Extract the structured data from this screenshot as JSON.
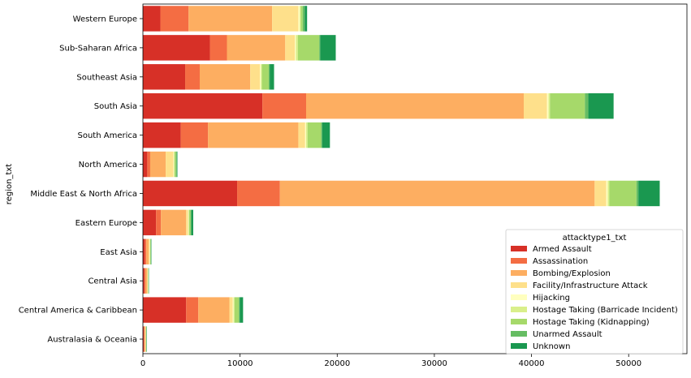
{
  "chart_data": {
    "type": "bar",
    "orientation": "horizontal",
    "stacked": true,
    "ylabel": "region_txt",
    "xlabel": "",
    "xlim": [
      0,
      56000
    ],
    "xticks": [
      0,
      10000,
      20000,
      30000,
      40000,
      50000
    ],
    "xtick_labels": [
      "0",
      "10000",
      "20000",
      "30000",
      "40000",
      "50000"
    ],
    "grid": false,
    "legend": {
      "title": "attacktype1_txt",
      "placement": "lower-right"
    },
    "categories": [
      "Western Europe",
      "Sub-Saharan Africa",
      "Southeast Asia",
      "South Asia",
      "South America",
      "North America",
      "Middle East & North Africa",
      "Eastern Europe",
      "East Asia",
      "Central Asia",
      "Central America & Caribbean",
      "Australasia & Oceania"
    ],
    "series": [
      {
        "name": "Armed Assault",
        "color": "#d73027",
        "values": [
          1800,
          6900,
          4350,
          12300,
          3900,
          450,
          9700,
          1350,
          200,
          150,
          4450,
          100
        ]
      },
      {
        "name": "Assassination",
        "color": "#f46d43",
        "values": [
          2900,
          1750,
          1500,
          4500,
          2800,
          300,
          4400,
          500,
          150,
          100,
          1250,
          50
        ]
      },
      {
        "name": "Bombing/Explosion",
        "color": "#fdae61",
        "values": [
          8600,
          6000,
          5200,
          22400,
          9300,
          1600,
          32400,
          2600,
          250,
          200,
          3200,
          100
        ]
      },
      {
        "name": "Facility/Infrastructure Attack",
        "color": "#fee08b",
        "values": [
          2700,
          1000,
          1000,
          2400,
          700,
          800,
          1200,
          200,
          100,
          50,
          350,
          50
        ]
      },
      {
        "name": "Hijacking",
        "color": "#ffffbf",
        "values": [
          150,
          100,
          100,
          150,
          100,
          50,
          150,
          50,
          30,
          20,
          80,
          10
        ]
      },
      {
        "name": "Hostage Taking (Barricade Incident)",
        "color": "#d9ef8b",
        "values": [
          100,
          200,
          100,
          150,
          150,
          50,
          150,
          50,
          20,
          20,
          100,
          10
        ]
      },
      {
        "name": "Hostage Taking (Kidnapping)",
        "color": "#a6d96a",
        "values": [
          200,
          2200,
          700,
          3600,
          1400,
          150,
          2800,
          150,
          50,
          30,
          450,
          20
        ]
      },
      {
        "name": "Unarmed Assault",
        "color": "#66bd63",
        "values": [
          200,
          100,
          100,
          350,
          100,
          100,
          200,
          80,
          30,
          20,
          80,
          20
        ]
      },
      {
        "name": "Unknown",
        "color": "#1a9850",
        "values": [
          250,
          1600,
          450,
          2600,
          800,
          50,
          2200,
          200,
          40,
          30,
          350,
          40
        ]
      }
    ]
  }
}
